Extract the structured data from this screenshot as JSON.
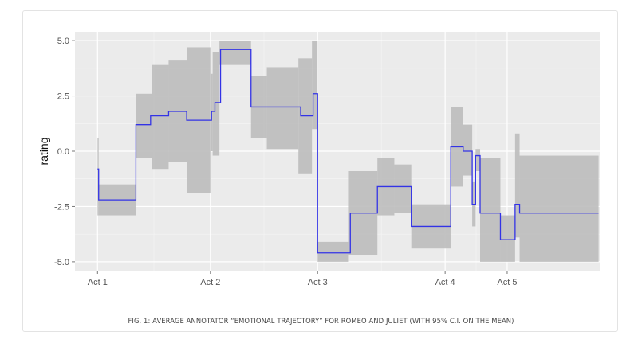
{
  "chart_data": {
    "type": "line",
    "title": "",
    "xlabel": "",
    "ylabel": "rating",
    "ylim": [
      -5.4,
      5.4
    ],
    "y_ticks": [
      5.0,
      2.5,
      0.0,
      -2.5,
      -5.0
    ],
    "y_tick_labels": [
      "5.0",
      "2.5",
      "0.0",
      "-2.5",
      "-5.0"
    ],
    "x_categories": [
      "Act 1",
      "Act 2",
      "Act 3",
      "Act 4",
      "Act 5"
    ],
    "x_category_positions": [
      1.0,
      2.0,
      2.95,
      4.08,
      4.63
    ],
    "xlim": [
      0.8,
      5.45
    ],
    "series": [
      {
        "name": "mean",
        "step": true,
        "color": "#3333e6",
        "x": [
          1.0,
          1.01,
          1.34,
          1.47,
          1.63,
          1.79,
          2.01,
          2.04,
          2.09,
          2.36,
          2.8,
          2.91,
          2.95,
          3.24,
          3.48,
          3.78,
          4.13,
          4.24,
          4.32,
          4.35,
          4.39,
          4.57,
          4.7,
          4.74,
          5.44
        ],
        "y": [
          -0.8,
          -2.2,
          1.2,
          1.6,
          1.8,
          1.4,
          1.8,
          2.2,
          4.6,
          2.0,
          1.6,
          2.6,
          -4.6,
          -2.8,
          -1.6,
          -3.4,
          0.2,
          0.0,
          -2.4,
          -0.2,
          -2.8,
          -4.0,
          -2.4,
          -2.8,
          -2.8
        ]
      }
    ],
    "confidence_band": {
      "name": "95% C.I. on the mean",
      "color": "#bdbdbd",
      "segments": [
        {
          "x0": 1.0,
          "x1": 1.01,
          "lo": -2.9,
          "hi": 0.6
        },
        {
          "x0": 1.01,
          "x1": 1.34,
          "lo": -2.9,
          "hi": -1.5
        },
        {
          "x0": 1.34,
          "x1": 1.48,
          "lo": -0.3,
          "hi": 2.6
        },
        {
          "x0": 1.48,
          "x1": 1.63,
          "lo": -0.8,
          "hi": 3.9
        },
        {
          "x0": 1.63,
          "x1": 1.79,
          "lo": -0.5,
          "hi": 4.1
        },
        {
          "x0": 1.79,
          "x1": 2.0,
          "lo": -1.9,
          "hi": 4.7
        },
        {
          "x0": 2.0,
          "x1": 2.02,
          "lo": 0.0,
          "hi": 3.5
        },
        {
          "x0": 2.02,
          "x1": 2.08,
          "lo": -0.2,
          "hi": 4.5
        },
        {
          "x0": 2.08,
          "x1": 2.36,
          "lo": 3.9,
          "hi": 5.0
        },
        {
          "x0": 2.36,
          "x1": 2.5,
          "lo": 0.6,
          "hi": 3.4
        },
        {
          "x0": 2.5,
          "x1": 2.78,
          "lo": 0.1,
          "hi": 3.8
        },
        {
          "x0": 2.78,
          "x1": 2.9,
          "lo": -1.0,
          "hi": 4.2
        },
        {
          "x0": 2.9,
          "x1": 2.95,
          "lo": 1.0,
          "hi": 5.0
        },
        {
          "x0": 2.95,
          "x1": 3.22,
          "lo": -5.0,
          "hi": -4.1
        },
        {
          "x0": 3.22,
          "x1": 3.48,
          "lo": -4.7,
          "hi": -0.9
        },
        {
          "x0": 3.48,
          "x1": 3.63,
          "lo": -2.9,
          "hi": -0.3
        },
        {
          "x0": 3.63,
          "x1": 3.78,
          "lo": -2.8,
          "hi": -0.6
        },
        {
          "x0": 3.78,
          "x1": 4.13,
          "lo": -4.4,
          "hi": -2.4
        },
        {
          "x0": 4.13,
          "x1": 4.24,
          "lo": -1.6,
          "hi": 2.0
        },
        {
          "x0": 4.24,
          "x1": 4.32,
          "lo": -1.1,
          "hi": 1.2
        },
        {
          "x0": 4.32,
          "x1": 4.35,
          "lo": -3.4,
          "hi": -1.4
        },
        {
          "x0": 4.35,
          "x1": 4.39,
          "lo": -0.9,
          "hi": 0.1
        },
        {
          "x0": 4.39,
          "x1": 4.57,
          "lo": -5.0,
          "hi": -0.3
        },
        {
          "x0": 4.57,
          "x1": 4.7,
          "lo": -5.0,
          "hi": -2.9
        },
        {
          "x0": 4.7,
          "x1": 4.74,
          "lo": -3.9,
          "hi": 0.8
        },
        {
          "x0": 4.74,
          "x1": 5.44,
          "lo": -5.0,
          "hi": -0.2
        }
      ]
    },
    "grid": true,
    "legend": "none"
  },
  "caption": "FIG. 1: AVERAGE ANNOTATOR “EMOTIONAL TRAJECTORY” FOR ROMEO AND JULIET (WITH 95% C.I. ON THE MEAN)"
}
